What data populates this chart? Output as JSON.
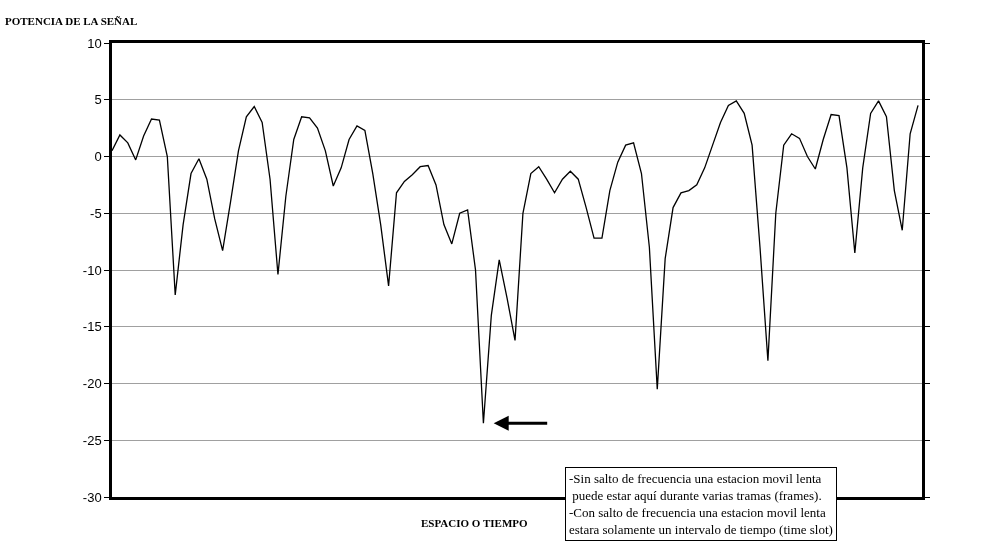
{
  "chart_data": {
    "type": "line",
    "ylabel": "POTENCIA DE LA SEÑAL",
    "xlabel": "ESPACIO O TIEMPO",
    "categories": [
      null,
      null,
      null,
      null,
      null,
      null,
      null,
      null,
      null,
      null,
      null,
      null,
      null,
      null,
      null,
      null,
      null,
      null,
      null,
      null,
      null,
      null,
      null,
      null,
      null,
      null,
      null,
      null,
      null,
      null,
      null,
      null,
      null,
      null,
      null,
      null,
      null,
      null,
      null,
      null,
      null,
      null,
      null,
      null,
      null,
      null,
      null,
      null,
      null,
      null,
      null,
      null,
      null,
      null,
      null,
      null,
      null,
      null,
      null,
      null,
      null,
      null,
      null,
      null,
      null,
      null,
      null,
      null,
      null,
      null,
      null,
      null,
      null,
      null,
      null,
      null,
      null,
      null,
      null,
      null,
      null,
      null,
      null,
      null,
      null,
      null,
      null,
      null,
      null,
      null,
      null,
      null,
      null,
      null,
      null,
      null,
      null,
      null,
      null,
      null,
      null,
      null,
      null
    ],
    "series": [
      {
        "color": "#000000",
        "values": [
          0.5,
          1.9,
          1.2,
          -0.3,
          1.8,
          3.3,
          3.2,
          0,
          -12.2,
          -6,
          -1.5,
          -0.2,
          -2,
          -5.5,
          -8.3,
          -4,
          0.5,
          3.5,
          4.4,
          3,
          -2,
          -10.4,
          -3.5,
          1.5,
          3.5,
          3.4,
          2.5,
          0.5,
          -2.6,
          -1,
          1.5,
          2.7,
          2.3,
          -1.5,
          -6,
          -11.4,
          -3.2,
          -2.2,
          -1.6,
          -0.9,
          -0.8,
          -2.5,
          -6,
          -7.7,
          -5,
          -4.7,
          -10,
          -23.5,
          -14,
          -9.1,
          -12.5,
          -16.2,
          -5,
          -1.5,
          -0.9,
          -2,
          -3.2,
          -2,
          -1.3,
          -2,
          -4.5,
          -7.2,
          -7.2,
          -3,
          -0.5,
          1,
          1.2,
          -1.5,
          -8,
          -20.5,
          -9,
          -4.5,
          -3.2,
          -3,
          -2.5,
          -1,
          1,
          3,
          4.5,
          4.9,
          3.8,
          1,
          -8,
          -18,
          -5,
          1,
          2,
          1.6,
          0,
          -1.1,
          1.5,
          3.7,
          3.6,
          -1,
          -8.5,
          -1,
          3.8,
          4.9,
          3.5,
          -3,
          -6.5,
          2,
          4.5
        ]
      }
    ],
    "ylim": [
      -30,
      10
    ],
    "yticks": [
      -30,
      -25,
      -20,
      -15,
      -10,
      -5,
      0,
      5,
      10
    ],
    "grid": "y",
    "tick_labels": "y",
    "marker": "none",
    "line_style": "solid",
    "annotations": [
      "-Sin salto de frecuencia una estacion movil lenta\n puede estar aquí durante varias tramas (frames).\n-Con salto de frecuencia una estacion movil lenta\nestara solamente un intervalo de tiempo (time slot)"
    ]
  }
}
